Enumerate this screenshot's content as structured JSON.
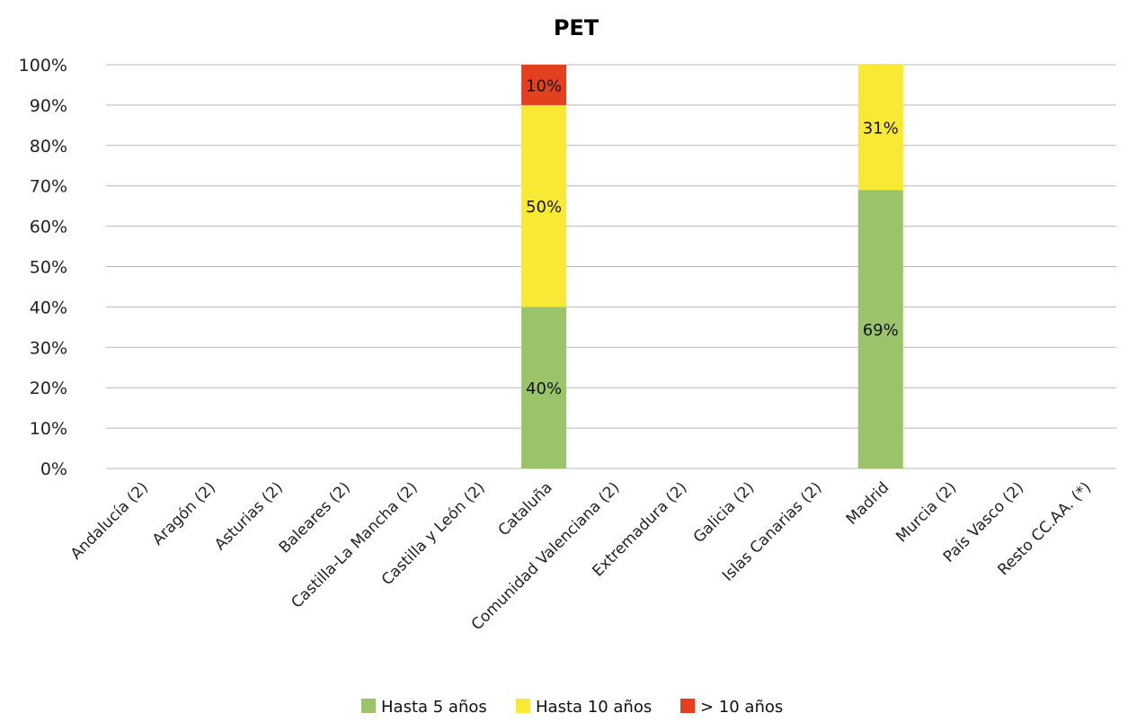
{
  "chart_data": {
    "type": "bar",
    "stacked": true,
    "percent": true,
    "title": "PET",
    "xlabel": "",
    "ylabel": "",
    "ylim": [
      0,
      100
    ],
    "y_ticks": [
      "0%",
      "10%",
      "20%",
      "30%",
      "40%",
      "50%",
      "60%",
      "70%",
      "80%",
      "90%",
      "100%"
    ],
    "grid": true,
    "legend_position": "bottom",
    "categories": [
      "Andalucía (2)",
      "Aragón (2)",
      "Asturias (2)",
      "Baleares (2)",
      "Castilla-La Mancha (2)",
      "Castilla y León (2)",
      "Cataluña",
      "Comunidad Valenciana (2)",
      "Extremadura (2)",
      "Galicia (2)",
      "Islas Canarias (2)",
      "Madrid",
      "Murcia (2)",
      "País Vasco (2)",
      "Resto CC.AA. (*)"
    ],
    "series": [
      {
        "name": "Hasta 5 años",
        "color": "#9bc46a",
        "values": [
          0,
          0,
          0,
          0,
          0,
          0,
          40,
          0,
          0,
          0,
          0,
          69,
          0,
          0,
          0
        ],
        "labels": [
          "",
          "",
          "",
          "",
          "",
          "",
          "40%",
          "",
          "",
          "",
          "",
          "69%",
          "",
          "",
          ""
        ]
      },
      {
        "name": "Hasta 10 años",
        "color": "#f9e934",
        "values": [
          0,
          0,
          0,
          0,
          0,
          0,
          50,
          0,
          0,
          0,
          0,
          31,
          0,
          0,
          0
        ],
        "labels": [
          "",
          "",
          "",
          "",
          "",
          "",
          "50%",
          "",
          "",
          "",
          "",
          "31%",
          "",
          "",
          ""
        ]
      },
      {
        "name": "> 10 años",
        "color": "#e2401f",
        "values": [
          0,
          0,
          0,
          0,
          0,
          0,
          10,
          0,
          0,
          0,
          0,
          0,
          0,
          0,
          0
        ],
        "labels": [
          "",
          "",
          "",
          "",
          "",
          "",
          "10%",
          "",
          "",
          "",
          "",
          "",
          "",
          "",
          ""
        ]
      }
    ]
  }
}
